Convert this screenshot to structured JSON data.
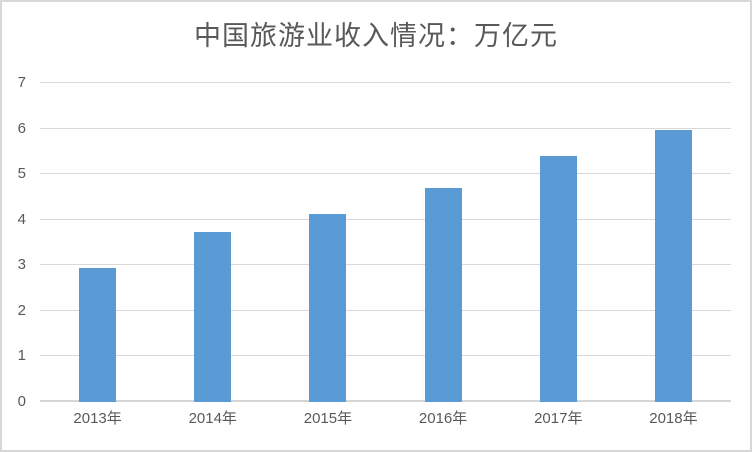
{
  "chart_data": {
    "type": "bar",
    "title": "中国旅游业收入情况：万亿元",
    "categories": [
      "2013年",
      "2014年",
      "2015年",
      "2016年",
      "2017年",
      "2018年"
    ],
    "values": [
      2.95,
      3.73,
      4.13,
      4.69,
      5.4,
      5.97
    ],
    "xlabel": "",
    "ylabel": "",
    "ylim": [
      0,
      7
    ],
    "y_ticks": [
      0,
      1,
      2,
      3,
      4,
      5,
      6,
      7
    ],
    "grid": true,
    "legend": "none",
    "colors": {
      "bar": "#5b9bd5",
      "gridline": "#d9d9d9",
      "axis_line": "#d5d5d5",
      "tick_label": "#595959",
      "title": "#595959",
      "frame_border": "#d8d8d8",
      "background": "#ffffff"
    }
  }
}
